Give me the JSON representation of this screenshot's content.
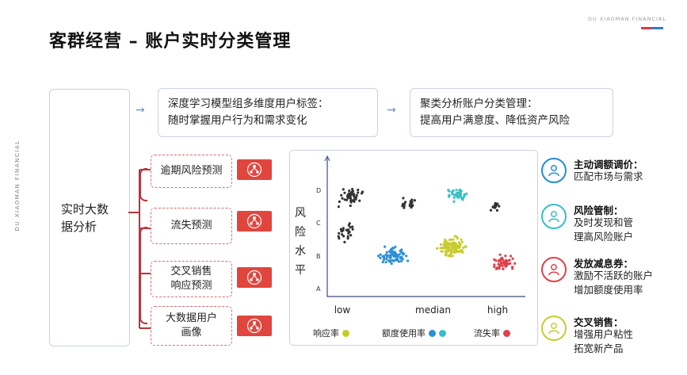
{
  "brand": {
    "name": "DU XIAOMAN FINANCIAL",
    "colors": {
      "red": "#e0383e",
      "blue": "#2d7dd2"
    }
  },
  "title": "客群经营 – 账户实时分类管理",
  "main_box": {
    "label": "实时大数据分析"
  },
  "top_boxes": [
    {
      "line1": "深度学习模型组多维度用户标签：",
      "line2": "随时掌握用户行为和需求变化"
    },
    {
      "line1": "聚类分析账户分类管理：",
      "line2": "提高用户满意度、降低资产风险"
    }
  ],
  "tasks": [
    {
      "label": "逾期风险预测",
      "icon": "cluster-network-icon"
    },
    {
      "label": "流失预测",
      "icon": "cluster-network-icon"
    },
    {
      "label": "交叉销售\n响应预测",
      "icon": "cluster-network-icon"
    },
    {
      "label": "大数据用户\n画像",
      "icon": "cluster-network-icon"
    }
  ],
  "chart_data": {
    "type": "scatter",
    "ylabel": "风险水平",
    "yticks": [
      "A",
      "B",
      "C",
      "D"
    ],
    "xticks": [
      "low",
      "median",
      "high"
    ],
    "legend": [
      {
        "label": "响应率",
        "colors": [
          "#c8cc2c"
        ]
      },
      {
        "label": "额度使用率",
        "colors": [
          "#2b8fd6",
          "#36bfc7"
        ]
      },
      {
        "label": "流失率",
        "colors": [
          "#e0404a"
        ]
      }
    ],
    "clusters": [
      {
        "color": "#333333",
        "x": 0.13,
        "y": 3.05,
        "spread_x": 0.08,
        "spread_y": 0.35,
        "count": 45
      },
      {
        "color": "#333333",
        "x": 0.1,
        "y": 1.95,
        "spread_x": 0.07,
        "spread_y": 0.35,
        "count": 25
      },
      {
        "color": "#333333",
        "x": 0.45,
        "y": 2.85,
        "spread_x": 0.06,
        "spread_y": 0.3,
        "count": 20
      },
      {
        "color": "#2b8fd6",
        "x": 0.37,
        "y": 1.25,
        "spread_x": 0.1,
        "spread_y": 0.35,
        "count": 70
      },
      {
        "color": "#36bfc7",
        "x": 0.72,
        "y": 3.1,
        "spread_x": 0.08,
        "spread_y": 0.25,
        "count": 40
      },
      {
        "color": "#333333",
        "x": 0.93,
        "y": 2.75,
        "spread_x": 0.04,
        "spread_y": 0.22,
        "count": 15
      },
      {
        "color": "#c8cc2c",
        "x": 0.69,
        "y": 1.5,
        "spread_x": 0.1,
        "spread_y": 0.4,
        "count": 110
      },
      {
        "color": "#e0404a",
        "x": 0.98,
        "y": 1.05,
        "spread_x": 0.08,
        "spread_y": 0.3,
        "count": 50
      }
    ]
  },
  "retention": [
    {
      "title": "主动调额调价：",
      "desc": [
        "匹配市场与需求"
      ],
      "icon": "adjust-user-icon",
      "color": "#1e8fd0"
    },
    {
      "title": "风险管制：",
      "desc": [
        "及时发现和管",
        "理高风险账户"
      ],
      "icon": "risk-user-icon",
      "color": "#36bfc7"
    },
    {
      "title": "发放减息券：",
      "desc": [
        "激励不活跃的账户",
        "增加额度使用率"
      ],
      "icon": "coupon-user-icon",
      "color": "#e0404a"
    },
    {
      "title": "交叉销售：",
      "desc": [
        "增强用户粘性",
        "拓宽新产品"
      ],
      "icon": "cross-sell-user-icon",
      "color": "#c8cc2c"
    }
  ]
}
